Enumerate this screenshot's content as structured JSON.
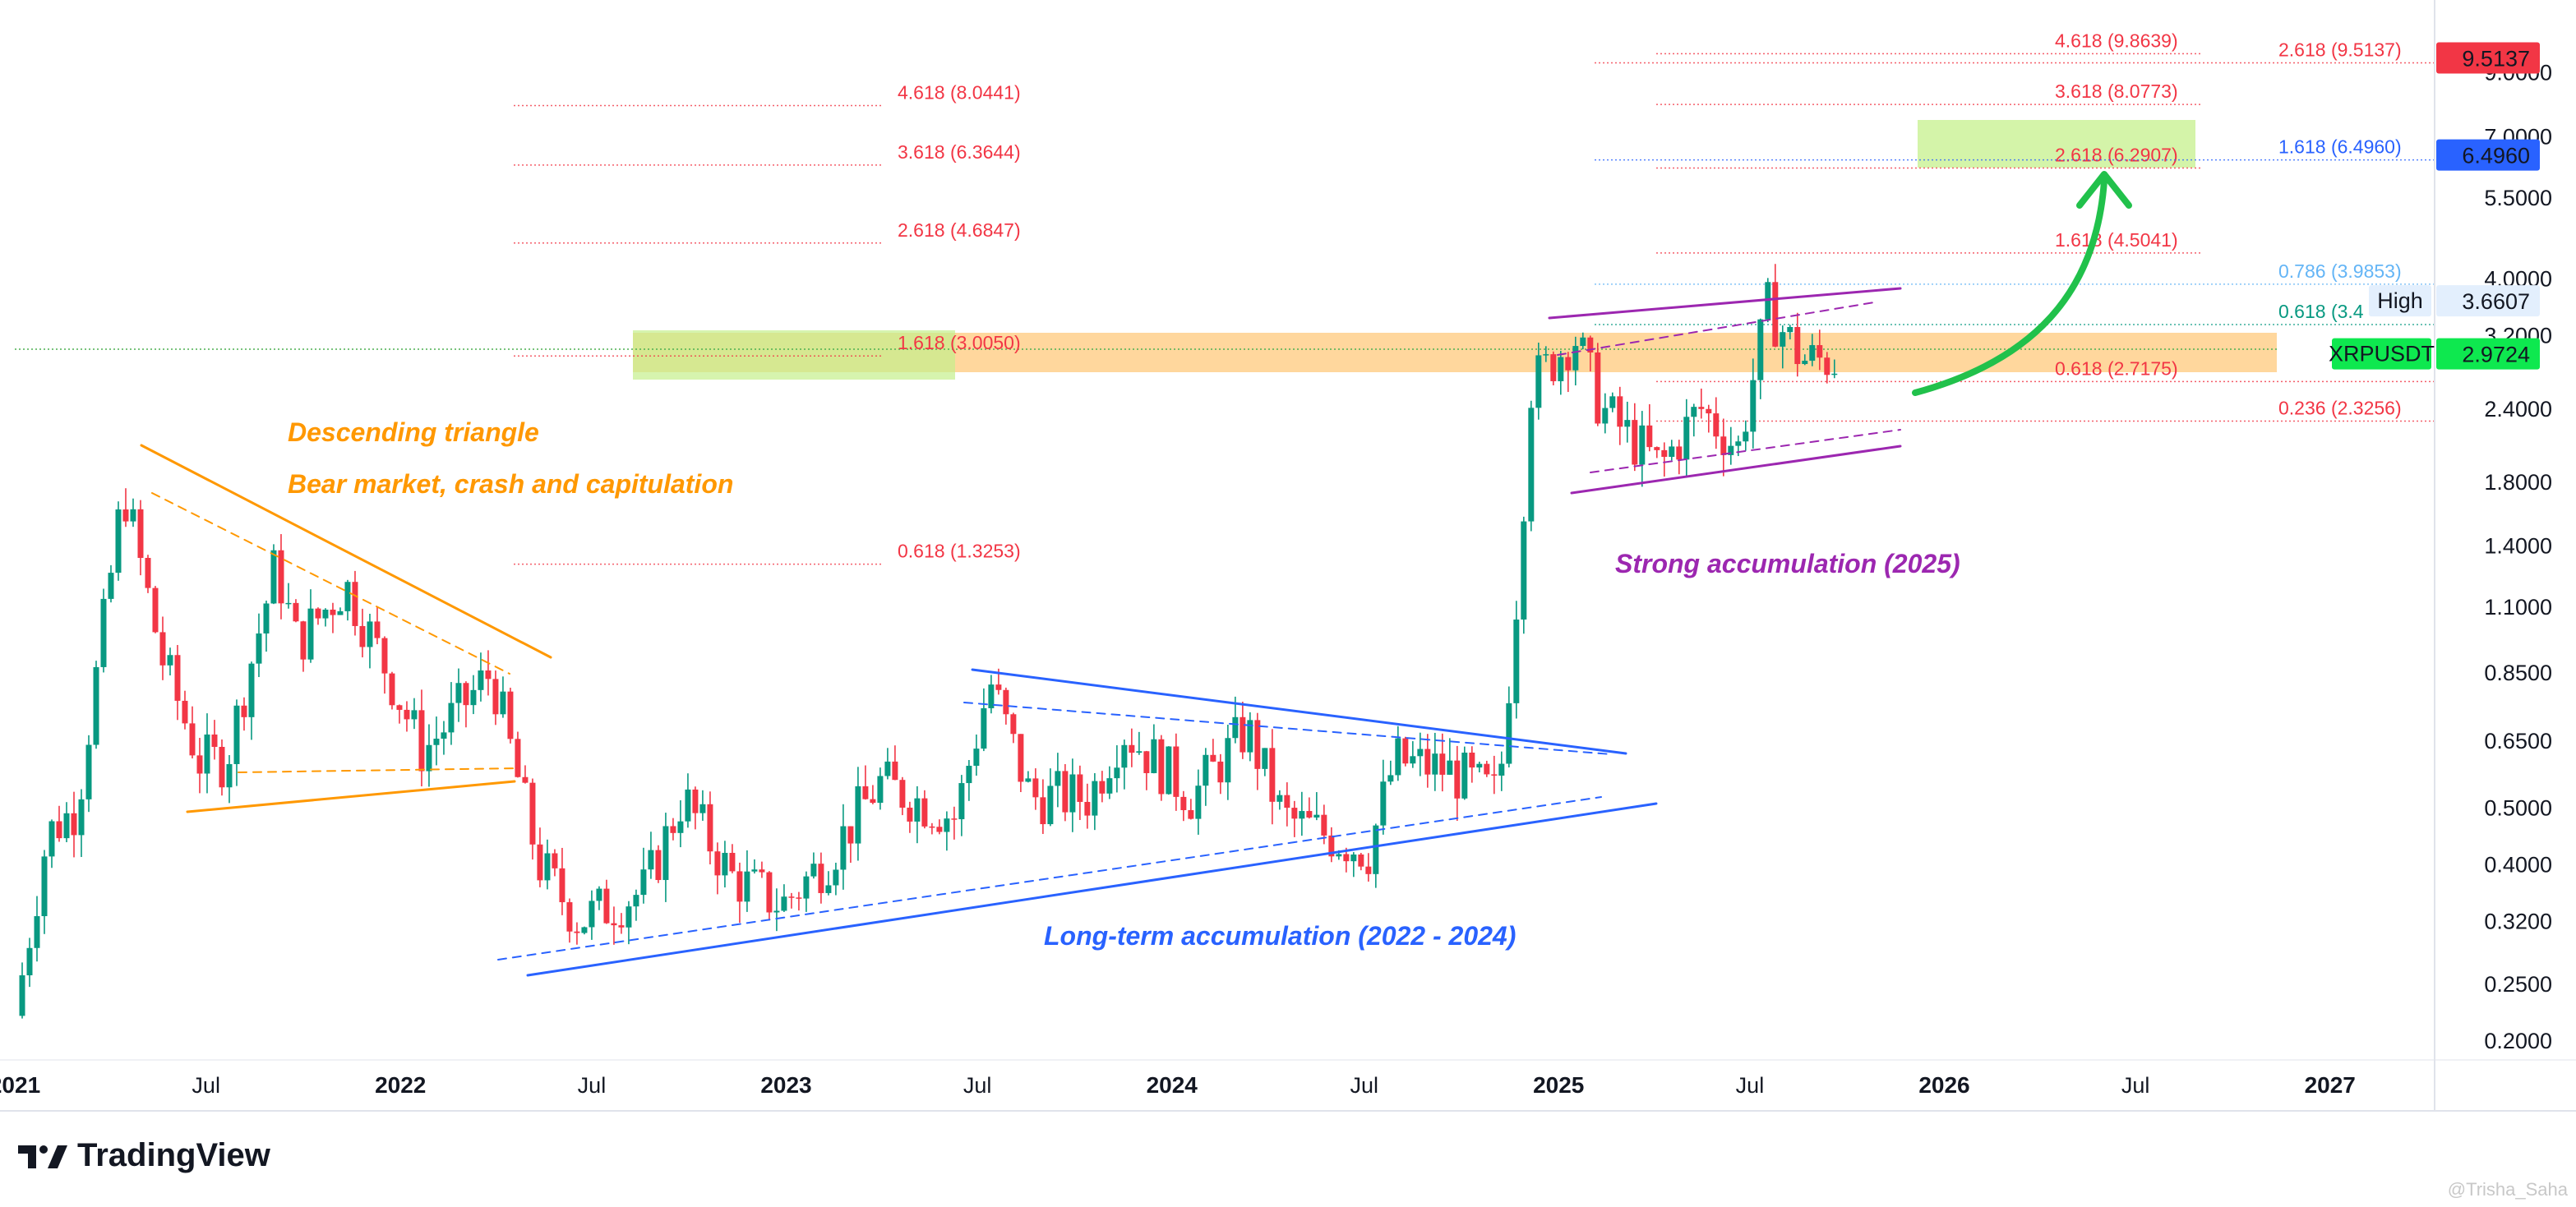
{
  "chart_data": {
    "type": "candlestick",
    "symbol": "XRPUSDT",
    "y_scale": "log",
    "ylim": [
      0.185,
      11.2
    ],
    "xlim": [
      "2021-01-01",
      "2027-04-10"
    ],
    "y_ticks": [
      "0.2000",
      "0.2500",
      "0.3200",
      "0.4000",
      "0.5000",
      "0.6500",
      "0.8500",
      "1.1000",
      "1.4000",
      "1.8000",
      "2.4000",
      "3.2000",
      "4.0000",
      "5.5000",
      "7.0000",
      "9.0000"
    ],
    "x_ticks": [
      {
        "label": "2021",
        "date": "2021-01-01"
      },
      {
        "label": "Jul",
        "date": "2021-07-01"
      },
      {
        "label": "2022",
        "date": "2022-01-01"
      },
      {
        "label": "Jul",
        "date": "2022-07-01"
      },
      {
        "label": "2023",
        "date": "2023-01-01"
      },
      {
        "label": "Jul",
        "date": "2023-07-01"
      },
      {
        "label": "2024",
        "date": "2024-01-01"
      },
      {
        "label": "Jul",
        "date": "2024-07-01"
      },
      {
        "label": "2025",
        "date": "2025-01-01"
      },
      {
        "label": "Jul",
        "date": "2025-07-01"
      },
      {
        "label": "2026",
        "date": "2026-01-01"
      },
      {
        "label": "Jul",
        "date": "2026-07-01"
      },
      {
        "label": "2027",
        "date": "2027-01-01"
      }
    ],
    "price_path": [
      [
        "2021-01-01",
        0.22
      ],
      [
        "2021-02-01",
        0.45
      ],
      [
        "2021-03-01",
        0.5
      ],
      [
        "2021-04-14",
        1.75
      ],
      [
        "2021-05-20",
        0.9
      ],
      [
        "2021-06-25",
        0.6
      ],
      [
        "2021-07-20",
        0.6
      ],
      [
        "2021-09-05",
        1.3
      ],
      [
        "2021-09-25",
        0.95
      ],
      [
        "2021-11-10",
        1.2
      ],
      [
        "2021-12-20",
        0.85
      ],
      [
        "2022-01-22",
        0.62
      ],
      [
        "2022-03-28",
        0.85
      ],
      [
        "2022-05-12",
        0.4
      ],
      [
        "2022-06-18",
        0.32
      ],
      [
        "2022-08-20",
        0.36
      ],
      [
        "2022-09-25",
        0.52
      ],
      [
        "2022-11-10",
        0.38
      ],
      [
        "2022-12-28",
        0.34
      ],
      [
        "2023-02-10",
        0.41
      ],
      [
        "2023-03-30",
        0.55
      ],
      [
        "2023-06-10",
        0.48
      ],
      [
        "2023-07-13",
        0.82
      ],
      [
        "2023-08-20",
        0.52
      ],
      [
        "2023-10-15",
        0.52
      ],
      [
        "2023-11-15",
        0.68
      ],
      [
        "2024-01-20",
        0.52
      ],
      [
        "2024-03-12",
        0.68
      ],
      [
        "2024-04-15",
        0.48
      ],
      [
        "2024-07-05",
        0.42
      ],
      [
        "2024-07-30",
        0.6
      ],
      [
        "2024-09-15",
        0.58
      ],
      [
        "2024-11-05",
        0.52
      ],
      [
        "2024-11-25",
        1.3
      ],
      [
        "2024-12-05",
        2.6
      ],
      [
        "2025-01-16",
        3.2
      ],
      [
        "2025-02-10",
        2.4
      ],
      [
        "2025-04-07",
        1.9
      ],
      [
        "2025-05-15",
        2.4
      ],
      [
        "2025-06-20",
        2.05
      ],
      [
        "2025-07-18",
        3.55
      ],
      [
        "2025-08-20",
        2.9
      ],
      [
        "2025-09-25",
        2.9
      ]
    ],
    "current_price": {
      "label": "XRPUSDT",
      "value": "2.9724"
    },
    "high_marker": {
      "label": "High",
      "value": "3.6607"
    },
    "target_boxes": [
      {
        "value": "9.5137",
        "color": "#f23645"
      },
      {
        "value": "6.4960",
        "color": "#2962ff"
      }
    ],
    "fib_labels": [
      {
        "text": "4.618 (8.0441)",
        "value": 8.0441,
        "color": "#f23645"
      },
      {
        "text": "3.618 (6.3644)",
        "value": 6.3644,
        "color": "#f23645"
      },
      {
        "text": "2.618 (4.6847)",
        "value": 4.6847,
        "color": "#f23645"
      },
      {
        "text": "1.618 (3.0050)",
        "value": 3.005,
        "color": "#f23645"
      },
      {
        "text": "0.618 (1.3253)",
        "value": 1.3253,
        "color": "#f23645"
      },
      {
        "text": "4.618 (9.8639)",
        "value": 9.8639,
        "color": "#f23645"
      },
      {
        "text": "3.618 (8.0773)",
        "value": 8.0773,
        "color": "#f23645"
      },
      {
        "text": "2.618 (6.2907)",
        "value": 6.2907,
        "color": "#f23645"
      },
      {
        "text": "1.618 (4.5041)",
        "value": 4.5041,
        "color": "#f23645"
      },
      {
        "text": "2.618 (9.5137)",
        "value": 9.5137,
        "color": "#f23645"
      },
      {
        "text": "1.618 (6.4960)",
        "value": 6.496,
        "color": "#2962ff"
      },
      {
        "text": "0.786 (3.9853)",
        "value": 3.9853,
        "color": "#64b5f6"
      },
      {
        "text": "0.618 (3.4",
        "value": 3.4,
        "color": "#089981"
      },
      {
        "text": "0.618 (2.7175)",
        "value": 2.7175,
        "color": "#f23645"
      },
      {
        "text": "0.236 (2.3256)",
        "value": 2.3256,
        "color": "#f23645"
      }
    ],
    "annotations": [
      {
        "text": "Descending triangle",
        "color": "#ff9800"
      },
      {
        "text": "Bear market, crash and capitulation",
        "color": "#ff9800"
      },
      {
        "text": "Long-term accumulation (2022 - 2024)",
        "color": "#2962ff"
      },
      {
        "text": "Strong accumulation (2025)",
        "color": "#9c27b0"
      }
    ]
  },
  "branding": {
    "name": "TradingView",
    "credit": "@Trisha_Saha"
  },
  "colors": {
    "up": "#089981",
    "down": "#f23645",
    "orange": "#ff9800",
    "blue": "#2962ff",
    "purple": "#9c27b0",
    "green_arrow": "#21c14b"
  }
}
